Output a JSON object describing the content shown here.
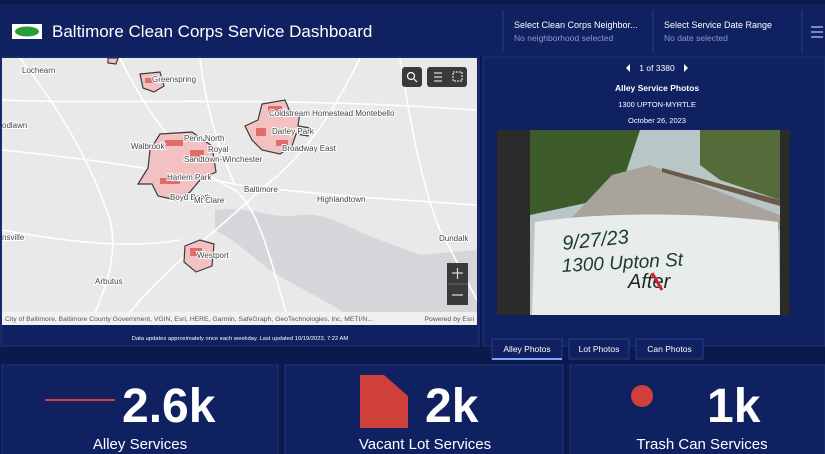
{
  "header": {
    "title": "Baltimore Clean Corps Service Dashboard",
    "filters": [
      {
        "label": "Select Clean Corps Neighbor...",
        "value": "No neighborhood selected"
      },
      {
        "label": "Select Service Date Range",
        "value": "No date selected"
      }
    ]
  },
  "map": {
    "place_labels": [
      "Lochearn",
      "Greenspring",
      "Coldstream Homestead Montebello",
      "odlawn",
      "Penn North",
      "Walbrook",
      "Royal",
      "Darley Park",
      "Broadway East",
      "Sandtown-Winchester",
      "Harlem Park",
      "Baltimore",
      "Boyd Booth",
      "Mt Clare",
      "Highlandtown",
      "nsville",
      "Westport",
      "Dundalk",
      "Arbutus"
    ],
    "attribution": "City of Baltimore, Baltimore County Government, VGIN, Esri, HERE, Garmin, SafeGraph, GeoTechnologies, Inc, METI/N...",
    "powered_by": "Powered by Esri",
    "footnote": "Data updates approximately once each weekday. Last updated 10/19/2023, 7:22 AM"
  },
  "photo_panel": {
    "pager": "1 of 3380",
    "title": "Alley Service Photos",
    "address": "1300 UPTON-MYRTLE",
    "date": "October 26, 2023",
    "handwriting": [
      "9/27/23",
      "1300 Upton St",
      "After"
    ],
    "tabs": [
      "Alley Photos",
      "Lot Photos",
      "Can Photos"
    ]
  },
  "cards": [
    {
      "value": "2.6k",
      "label": "Alley Services"
    },
    {
      "value": "2k",
      "label": "Vacant Lot Services"
    },
    {
      "value": "1k",
      "label": "Trash Can Services"
    }
  ]
}
